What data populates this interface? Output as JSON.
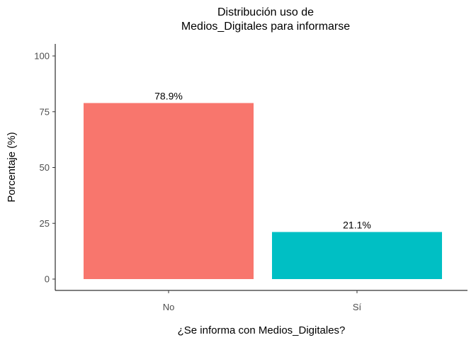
{
  "chart_data": {
    "type": "bar",
    "title_lines": [
      "Distribución uso de",
      "Medios_Digitales para informarse"
    ],
    "xlabel": "¿Se informa con Medios_Digitales?",
    "ylabel": "Porcentaje (%)",
    "categories": [
      "No",
      "Sí"
    ],
    "values": [
      78.9,
      21.1
    ],
    "value_labels": [
      "78.9%",
      "21.1%"
    ],
    "colors": [
      "#F8766D",
      "#00BFC4"
    ],
    "ylim": [
      0,
      100
    ],
    "yticks": [
      0,
      25,
      50,
      75,
      100
    ],
    "grid": false,
    "legend": "none"
  }
}
